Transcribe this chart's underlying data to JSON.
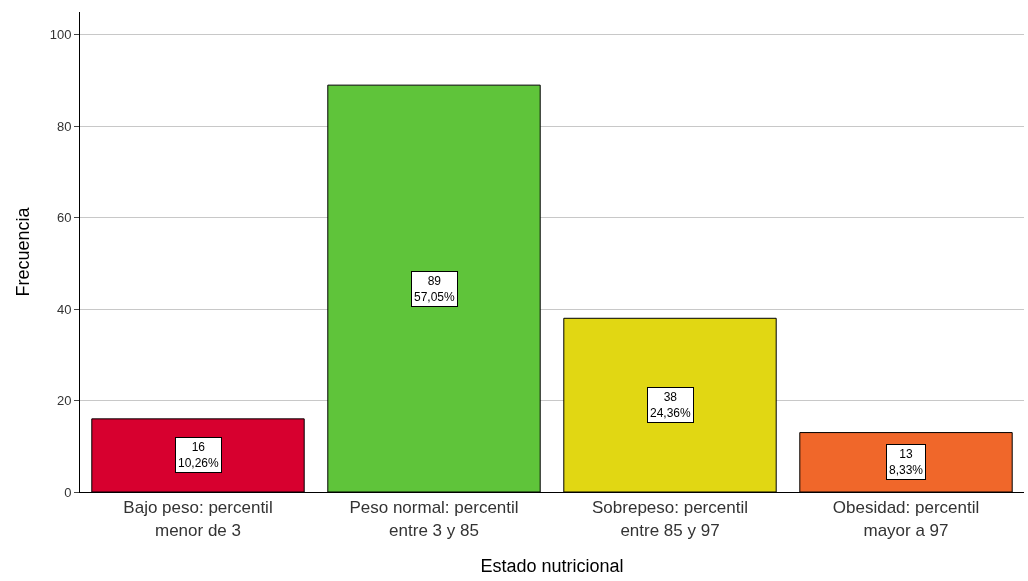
{
  "chart_data": {
    "type": "bar",
    "xlabel": "Estado nutricional",
    "ylabel": "Frecuencia",
    "categories": [
      "Bajo peso: percentil\nmenor de 3",
      "Peso normal: percentil\nentre 3 y 85",
      "Sobrepeso: percentil\nentre 85 y 97",
      "Obesidad: percentil\nmayor a 97"
    ],
    "values": [
      16,
      89,
      38,
      13
    ],
    "colors": [
      "#d7002f",
      "#5fc43a",
      "#e1d713",
      "#f0672a"
    ],
    "value_labels": [
      "16\n10,26%",
      "89\n57,05%",
      "38\n24,36%",
      "13\n8,33%"
    ],
    "ylim": [
      0,
      105
    ],
    "yticks": [
      0,
      20,
      40,
      60,
      80,
      100
    ],
    "grid": "y",
    "legend": false
  }
}
